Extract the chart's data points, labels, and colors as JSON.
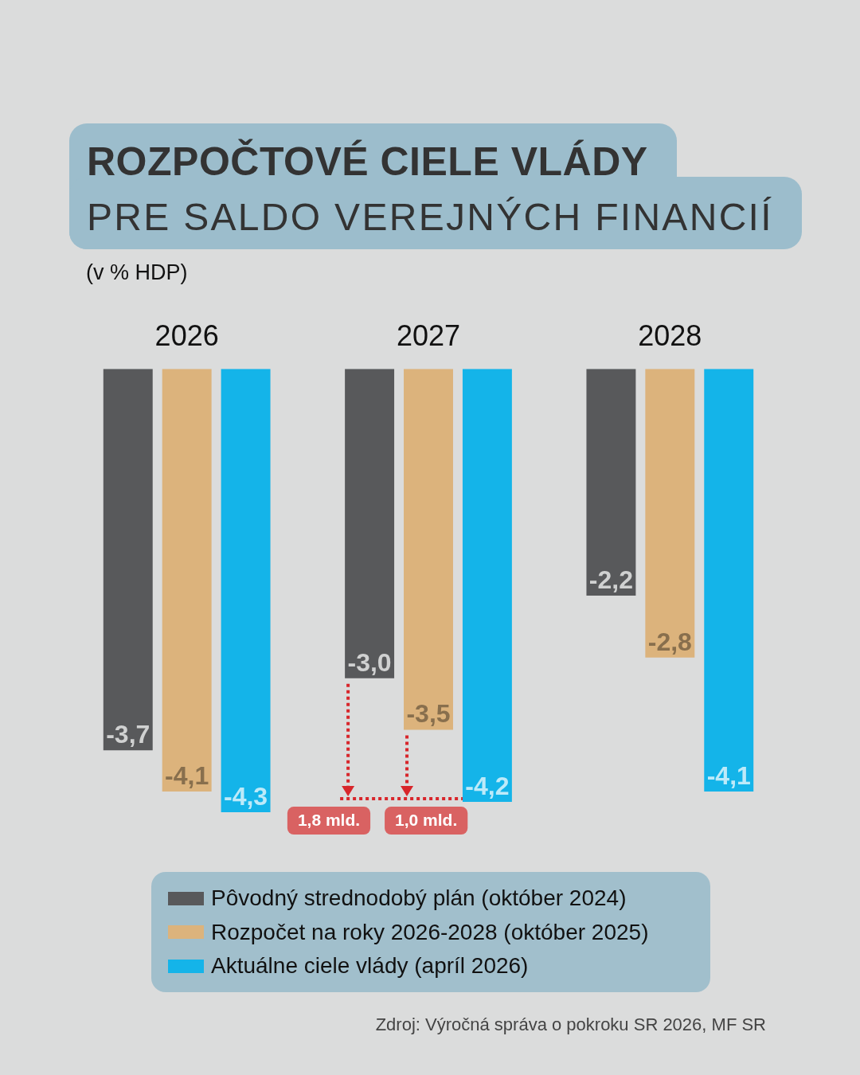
{
  "chart_data": {
    "type": "bar",
    "title": "ROZPOČTOVÉ CIELE VLÁDY",
    "subtitle": "PRE SALDO VEREJNÝCH FINANCIÍ",
    "ylabel": "(v % HDP)",
    "categories": [
      "2026",
      "2027",
      "2028"
    ],
    "series": [
      {
        "name": "Pôvodný strednodobý plán (október 2024)",
        "color": "#58595b",
        "values": [
          -3.7,
          -3.0,
          -2.2
        ],
        "value_labels": [
          "-3,7",
          "-3,0",
          "-2,2"
        ]
      },
      {
        "name": "Rozpočet na roky 2026-2028 (október 2025)",
        "color": "#dcb37c",
        "values": [
          -4.1,
          -3.5,
          -2.8
        ],
        "value_labels": [
          "-4,1",
          "-3,5",
          "-2,8"
        ]
      },
      {
        "name": "Aktuálne ciele vlády (apríl 2026)",
        "color": "#14b4e9",
        "values": [
          -4.3,
          -4.2,
          -4.1
        ],
        "value_labels": [
          "-4,3",
          "-4,2",
          "-4,1"
        ]
      }
    ],
    "annotations": [
      "1,8 mld.",
      "1,0 mld.",
      "Zdroj: Výročná správa o pokroku SR 2026, MF SR"
    ],
    "legend": "bottom",
    "tick_labels": "x"
  }
}
